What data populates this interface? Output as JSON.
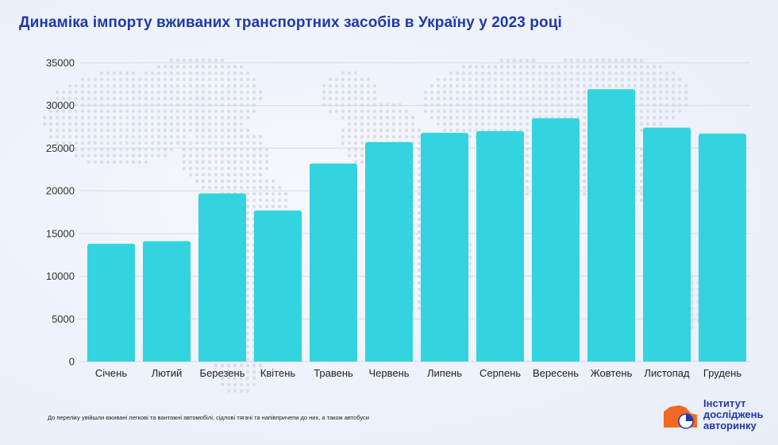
{
  "title": "Динаміка імпорту вживаних транспортних засобів в Україну у 2023 році",
  "footnote": "До переліку увійшли вживані легкові та вантажні автомобілі, сідлові тягачі та напівпричепи до них, а також автобуси",
  "logo": {
    "line1": "Інститут",
    "line2": "досліджень",
    "line3": "авторинку"
  },
  "colors": {
    "bar": "#33d3e0",
    "title": "#1f3aa8",
    "grid": "#d4d9e6",
    "map_dots": "#d3d7de",
    "logo_orange": "#f26a22",
    "logo_blue": "#1f3aa8"
  },
  "chart_data": {
    "type": "bar",
    "title": "Динаміка імпорту вживаних транспортних засобів в Україну у 2023 році",
    "categories": [
      "Січень",
      "Лютий",
      "Березень",
      "Квітень",
      "Травень",
      "Червень",
      "Липень",
      "Серпень",
      "Вересень",
      "Жовтень",
      "Листопад",
      "Грудень"
    ],
    "values": [
      13800,
      14100,
      19700,
      17700,
      23200,
      25700,
      26800,
      27000,
      28500,
      31900,
      27400,
      26700
    ],
    "ylim": [
      0,
      35000
    ],
    "yticks": [
      "0",
      "5000",
      "10000",
      "15000",
      "20000",
      "25000",
      "30000",
      "35000"
    ],
    "grid": true,
    "legend": "none",
    "xlabel": "",
    "ylabel": ""
  }
}
